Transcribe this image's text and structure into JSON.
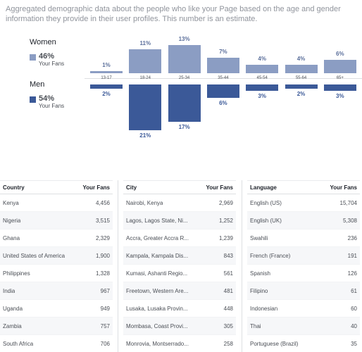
{
  "description": "Aggregated demographic data about the people who like your Page based on the age and gender information they provide in their user profiles. This number is an estimate.",
  "legend": {
    "women": {
      "name": "Women",
      "percent": "46%",
      "sub": "Your Fans",
      "color": "#8b9dc3"
    },
    "men": {
      "name": "Men",
      "percent": "54%",
      "sub": "Your Fans",
      "color": "#3b5998"
    }
  },
  "chart_data": {
    "type": "bar",
    "categories": [
      "13-17",
      "18-24",
      "25-34",
      "35-44",
      "45-54",
      "55-64",
      "65+"
    ],
    "series": [
      {
        "name": "Women",
        "values": [
          1,
          11,
          13,
          7,
          4,
          4,
          6
        ],
        "labels": [
          "1%",
          "11%",
          "13%",
          "7%",
          "4%",
          "4%",
          "6%"
        ]
      },
      {
        "name": "Men",
        "values": [
          2,
          21,
          17,
          6,
          3,
          2,
          3
        ],
        "labels": [
          "2%",
          "21%",
          "17%",
          "6%",
          "3%",
          "2%",
          "3%"
        ]
      }
    ]
  },
  "tables": [
    {
      "headers": [
        "Country",
        "Your Fans"
      ],
      "rows": [
        [
          "Kenya",
          "4,456"
        ],
        [
          "Nigeria",
          "3,515"
        ],
        [
          "Ghana",
          "2,329"
        ],
        [
          "United States of America",
          "1,900"
        ],
        [
          "Philippines",
          "1,328"
        ],
        [
          "India",
          "967"
        ],
        [
          "Uganda",
          "949"
        ],
        [
          "Zambia",
          "757"
        ],
        [
          "South Africa",
          "706"
        ]
      ]
    },
    {
      "headers": [
        "City",
        "Your Fans"
      ],
      "rows": [
        [
          "Nairobi, Kenya",
          "2,969"
        ],
        [
          "Lagos, Lagos State, Ni...",
          "1,252"
        ],
        [
          "Accra, Greater Accra R...",
          "1,239"
        ],
        [
          "Kampala, Kampala Dis...",
          "843"
        ],
        [
          "Kumasi, Ashanti Regio...",
          "561"
        ],
        [
          "Freetown, Western Are...",
          "481"
        ],
        [
          "Lusaka, Lusaka Provin...",
          "448"
        ],
        [
          "Mombasa, Coast Provi...",
          "305"
        ],
        [
          "Monrovia, Montserrado...",
          "258"
        ]
      ]
    },
    {
      "headers": [
        "Language",
        "Your Fans"
      ],
      "rows": [
        [
          "English (US)",
          "15,704"
        ],
        [
          "English (UK)",
          "5,308"
        ],
        [
          "Swahili",
          "236"
        ],
        [
          "French (France)",
          "191"
        ],
        [
          "Spanish",
          "126"
        ],
        [
          "Filipino",
          "61"
        ],
        [
          "Indonesian",
          "60"
        ],
        [
          "Thai",
          "40"
        ],
        [
          "Portuguese (Brazil)",
          "35"
        ]
      ]
    }
  ]
}
